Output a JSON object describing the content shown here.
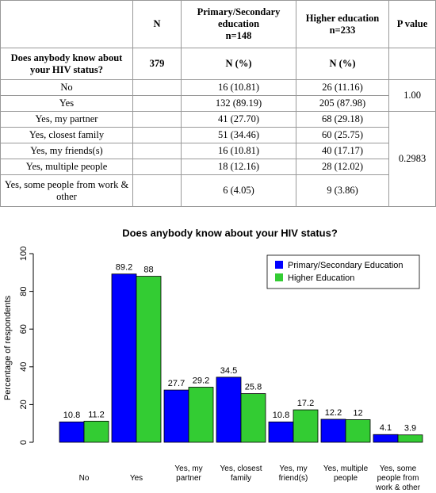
{
  "table": {
    "header": {
      "n": "N",
      "primary": [
        "Primary/Secondary",
        "education",
        "n=148"
      ],
      "higher": [
        "Higher education",
        "n=233"
      ],
      "p": "P value"
    },
    "question": "Does anybody know about your HIV status?",
    "total": "379",
    "subheader": [
      "N (%)",
      "N (%)"
    ],
    "rows": [
      {
        "label": "No",
        "primary": "16 (10.81)",
        "higher": "26 (11.16)"
      },
      {
        "label": "Yes",
        "primary": "132 (89.19)",
        "higher": "205 (87.98)"
      },
      {
        "label": "Yes, my partner",
        "primary": "41 (27.70)",
        "higher": "68 (29.18)"
      },
      {
        "label": "Yes, closest family",
        "primary": "51 (34.46)",
        "higher": "60 (25.75)"
      },
      {
        "label": "Yes, my friends(s)",
        "primary": "16 (10.81)",
        "higher": "40 (17.17)"
      },
      {
        "label": "Yes, multiple people",
        "primary": "18 (12.16)",
        "higher": "28 (12.02)"
      },
      {
        "label": "Yes, some people from work & other",
        "primary": "6 (4.05)",
        "higher": "9 (3.86)"
      }
    ],
    "p_values": [
      "1.00",
      "0.2983"
    ]
  },
  "chart_data": {
    "type": "bar",
    "title": "Does anybody know about your HIV status?",
    "y_label": "Percentage of respondents",
    "categories": [
      "No",
      "Yes",
      "Yes, my partner",
      "Yes, closest family",
      "Yes, my friend(s)",
      "Yes, multiple people",
      "Yes, some people from work & other"
    ],
    "series": [
      {
        "name": "Primary/Secondary Education",
        "color": "#0000ff",
        "values": [
          10.8,
          89.2,
          27.7,
          34.5,
          10.8,
          12.2,
          4.1
        ]
      },
      {
        "name": "Higher Education",
        "color": "#33cc33",
        "values": [
          11.2,
          88,
          29.2,
          25.8,
          17.2,
          12,
          3.9
        ]
      }
    ],
    "ylim": [
      0,
      100
    ],
    "yticks": [
      0,
      20,
      40,
      60,
      80,
      100
    ],
    "legend": "top-right"
  }
}
